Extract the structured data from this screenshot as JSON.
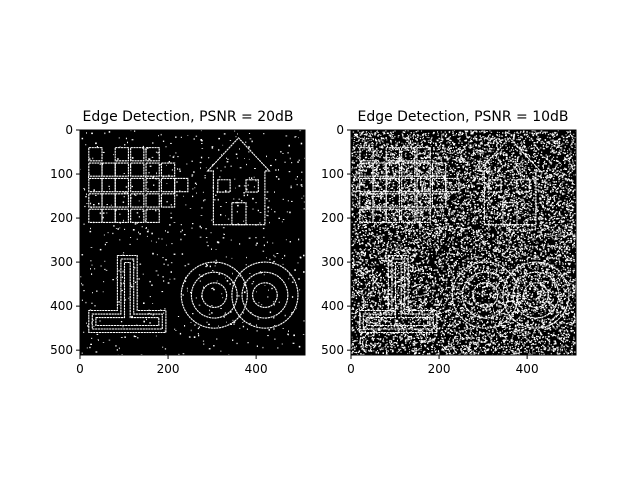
{
  "chart_data": [
    {
      "type": "image",
      "title": "Edge Detection, PSNR = 20dB",
      "xticks": [
        0,
        200,
        400
      ],
      "yticks": [
        0,
        100,
        200,
        300,
        400,
        500
      ],
      "xlim": [
        0,
        511
      ],
      "ylim": [
        511,
        0
      ],
      "background": "#000000",
      "edge_color": "#ffffff",
      "noise_level": 0.02
    },
    {
      "type": "image",
      "title": "Edge Detection, PSNR = 10dB",
      "xticks": [
        0,
        200,
        400
      ],
      "yticks": [
        0,
        100,
        200,
        300,
        400,
        500
      ],
      "xlim": [
        0,
        511
      ],
      "ylim": [
        511,
        0
      ],
      "background": "#000000",
      "edge_color": "#ffffff",
      "noise_level": 0.33
    }
  ]
}
